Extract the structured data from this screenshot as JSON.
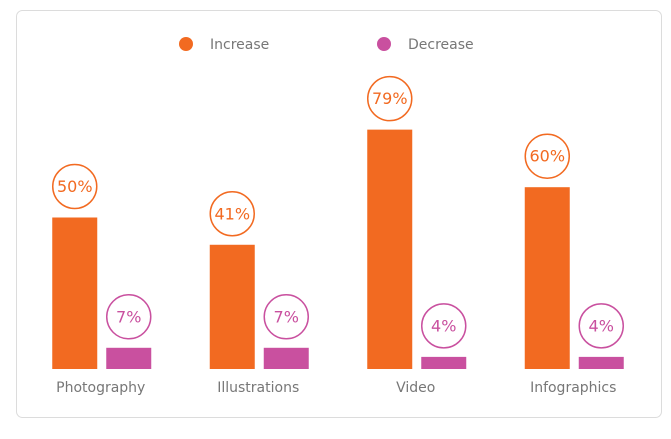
{
  "chart_data": {
    "type": "bar",
    "categories": [
      "Photography",
      "Illustrations",
      "Video",
      "Infographics"
    ],
    "series": [
      {
        "name": "Increase",
        "color": "#f26a21",
        "values": [
          50,
          41,
          79,
          60
        ],
        "value_labels": [
          "50%",
          "41%",
          "79%",
          "60%"
        ]
      },
      {
        "name": "Decrease",
        "color": "#c9509f",
        "values": [
          7,
          7,
          4,
          4
        ],
        "value_labels": [
          "7%",
          "7%",
          "4%",
          "4%"
        ]
      }
    ],
    "legend": "top"
  }
}
